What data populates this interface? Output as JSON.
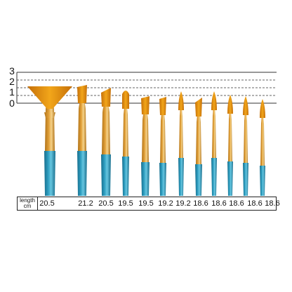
{
  "scale": {
    "labels": [
      "3",
      "2",
      "1",
      "0"
    ]
  },
  "table": {
    "header_line1": "length",
    "header_line2": "cm",
    "values": [
      "20.5",
      "21.2",
      "20.5",
      "19.5",
      "19.5",
      "19.2",
      "19.2",
      "18.6",
      "18.6",
      "18.6",
      "18.6",
      "18.6"
    ]
  },
  "brushes": [
    {
      "type": "fan",
      "length_cm": "20.5"
    },
    {
      "type": "flat",
      "length_cm": "21.2"
    },
    {
      "type": "angled",
      "length_cm": "20.5"
    },
    {
      "type": "filbert",
      "length_cm": "19.5"
    },
    {
      "type": "flat",
      "length_cm": "19.5"
    },
    {
      "type": "flat",
      "length_cm": "19.2"
    },
    {
      "type": "round",
      "length_cm": "19.2"
    },
    {
      "type": "angled",
      "length_cm": "18.6"
    },
    {
      "type": "round",
      "length_cm": "18.6"
    },
    {
      "type": "round",
      "length_cm": "18.6"
    },
    {
      "type": "round",
      "length_cm": "18.6"
    },
    {
      "type": "round",
      "length_cm": "18.6"
    }
  ],
  "colors": {
    "bristle": "#F2A61A",
    "bristle_dark": "#C56F08",
    "ferrule": "#E2A13A",
    "ferrule_dark": "#B17319",
    "handle": "#2E9EC0",
    "handle_dark": "#186E8D",
    "grid_line": "#333333"
  }
}
